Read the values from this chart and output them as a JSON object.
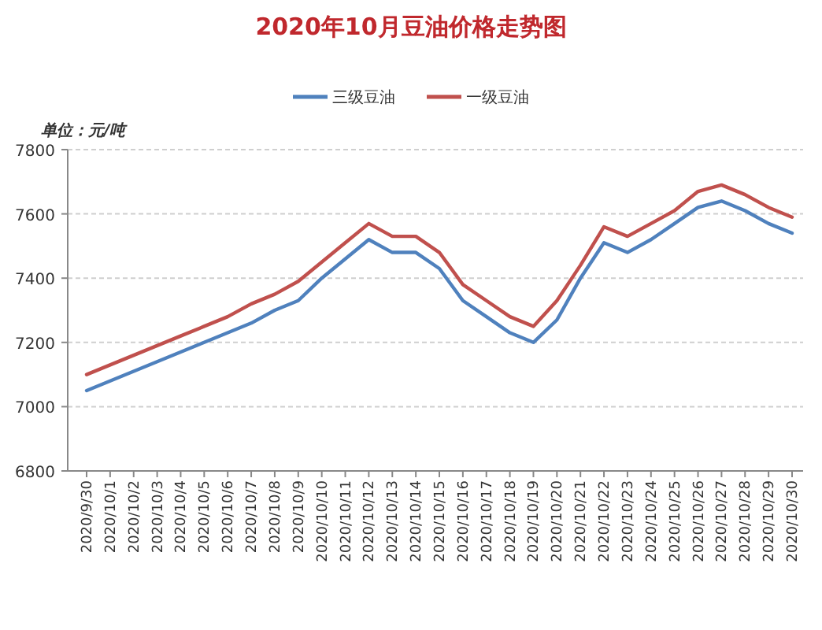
{
  "chart_data": {
    "type": "line",
    "title": "2020年10月豆油价格走势图",
    "ylabel": "单位：元/吨",
    "categories": [
      "2020/9/30",
      "2020/10/1",
      "2020/10/2",
      "2020/10/3",
      "2020/10/4",
      "2020/10/5",
      "2020/10/6",
      "2020/10/7",
      "2020/10/8",
      "2020/10/9",
      "2020/10/10",
      "2020/10/11",
      "2020/10/12",
      "2020/10/13",
      "2020/10/14",
      "2020/10/15",
      "2020/10/16",
      "2020/10/17",
      "2020/10/18",
      "2020/10/19",
      "2020/10/20",
      "2020/10/21",
      "2020/10/22",
      "2020/10/23",
      "2020/10/24",
      "2020/10/25",
      "2020/10/26",
      "2020/10/27",
      "2020/10/28",
      "2020/10/29",
      "2020/10/30"
    ],
    "series": [
      {
        "name": "三级豆油",
        "color": "#4f81bd",
        "values": [
          7050,
          7080,
          7110,
          7140,
          7170,
          7200,
          7230,
          7260,
          7300,
          7330,
          7400,
          7460,
          7520,
          7480,
          7480,
          7430,
          7330,
          7280,
          7230,
          7200,
          7270,
          7400,
          7510,
          7480,
          7520,
          7570,
          7620,
          7640,
          7610,
          7570,
          7540
        ]
      },
      {
        "name": "一级豆油",
        "color": "#c0504d",
        "values": [
          7100,
          7130,
          7160,
          7190,
          7220,
          7250,
          7280,
          7320,
          7350,
          7390,
          7450,
          7510,
          7570,
          7530,
          7530,
          7480,
          7380,
          7330,
          7280,
          7250,
          7330,
          7440,
          7560,
          7530,
          7570,
          7610,
          7670,
          7690,
          7660,
          7620,
          7590
        ]
      }
    ],
    "ylim": [
      6800,
      7800
    ],
    "yticks": [
      6800,
      7000,
      7200,
      7400,
      7600,
      7800
    ],
    "grid": "y",
    "legend": "top"
  }
}
